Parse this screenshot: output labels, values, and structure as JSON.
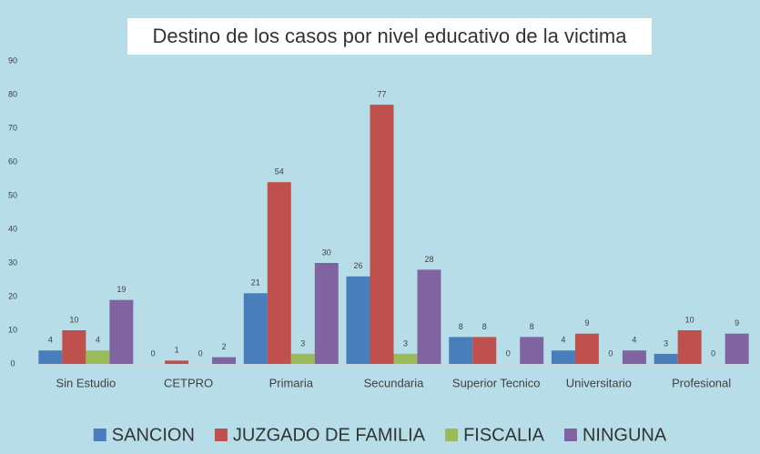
{
  "chart_data": {
    "type": "bar",
    "title": "Destino de los casos por nivel educativo de la victima",
    "categories": [
      "Sin Estudio",
      "CETPRO",
      "Primaria",
      "Secundaria",
      "Superior Tecnico",
      "Universitario",
      "Profesional"
    ],
    "series": [
      {
        "name": "SANCION",
        "color": "#4a7ebb",
        "values": [
          4,
          0,
          21,
          26,
          8,
          4,
          3
        ]
      },
      {
        "name": "JUZGADO DE FAMILIA",
        "color": "#c0504d",
        "values": [
          10,
          1,
          54,
          77,
          8,
          9,
          10
        ]
      },
      {
        "name": "FISCALIA",
        "color": "#9bbb59",
        "values": [
          4,
          0,
          3,
          3,
          0,
          0,
          0
        ]
      },
      {
        "name": "NINGUNA",
        "color": "#8064a2",
        "values": [
          19,
          2,
          30,
          28,
          8,
          4,
          9
        ]
      }
    ],
    "ylim": [
      0,
      90
    ],
    "yticks": [
      0,
      10,
      20,
      30,
      40,
      50,
      60,
      70,
      80,
      90
    ],
    "grid": false,
    "legend": "bottom"
  }
}
